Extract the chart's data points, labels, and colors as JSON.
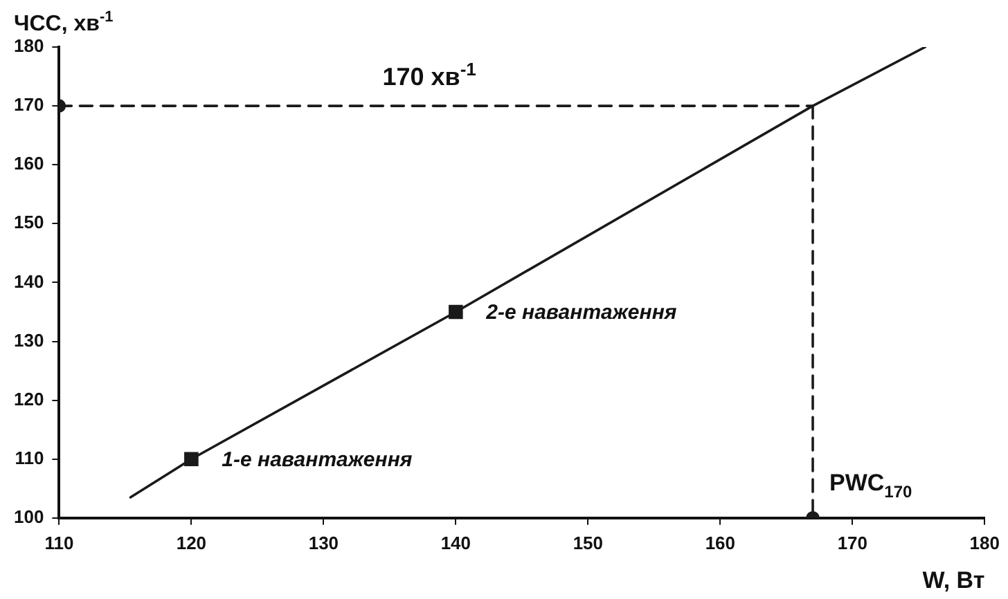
{
  "chart_data": {
    "type": "line",
    "xlabel": "W, Вт",
    "ylabel": "ЧСС, хв$^{-1}$",
    "xlim": [
      110,
      180
    ],
    "xticks": [
      110,
      120,
      130,
      140,
      150,
      160,
      170,
      180
    ],
    "ylim": [
      100,
      180
    ],
    "yticks": [
      100,
      110,
      120,
      130,
      140,
      150,
      160,
      170,
      180
    ],
    "grid": false,
    "legend": false,
    "series": [
      {
        "type": "line",
        "color": "#1a1a1a",
        "x": [
          115.4,
          120,
          140,
          167,
          175.5
        ],
        "values": [
          103.5,
          110,
          135,
          170,
          180
        ],
        "marker": "none",
        "line_style": "solid"
      },
      {
        "type": "scatter",
        "color": "#1a1a1a",
        "x": [
          120,
          140
        ],
        "values": [
          110,
          135
        ],
        "marker": "square"
      },
      {
        "type": "line",
        "color": "#1a1a1a",
        "x": [
          110,
          167
        ],
        "values": [
          170,
          170
        ],
        "marker": "none",
        "line_style": "dashed"
      },
      {
        "type": "line",
        "color": "#1a1a1a",
        "x": [
          167,
          167
        ],
        "values": [
          170,
          100
        ],
        "marker": "none",
        "line_style": "dashed"
      },
      {
        "type": "scatter",
        "color": "#1a1a1a",
        "x": [
          110,
          167
        ],
        "values": [
          170,
          100
        ],
        "marker": "circle"
      }
    ],
    "annotations": [
      {
        "text": "1-е навантаження",
        "x": 120,
        "y": 110
      },
      {
        "text": "2-е навантаження",
        "x": 140,
        "y": 135
      },
      {
        "text": "170 хв$^{-1}$",
        "x": 138,
        "y": 170
      },
      {
        "text": "PWC$_{170}$",
        "x": 167,
        "y": 100
      }
    ]
  }
}
